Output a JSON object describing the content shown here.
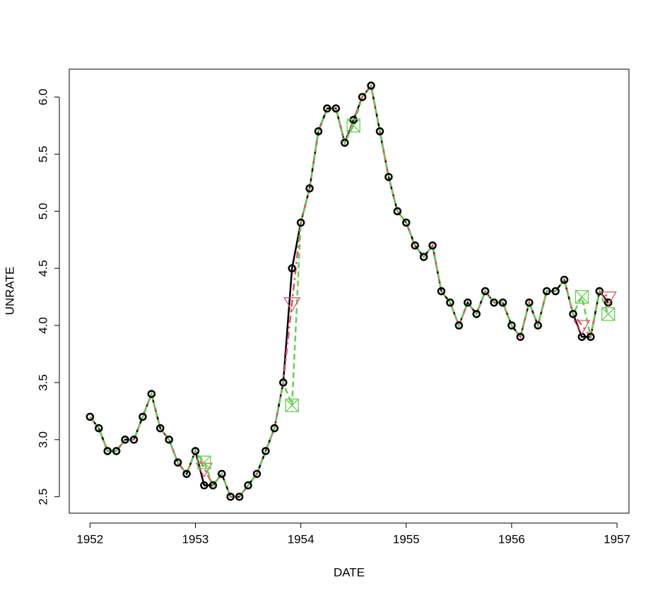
{
  "chart_data": {
    "type": "line",
    "x_label": "DATE",
    "y_label": "UNRATE",
    "x": [
      1952,
      1952.0833,
      1952.1667,
      1952.25,
      1952.3333,
      1952.4167,
      1952.5,
      1952.5833,
      1952.6667,
      1952.75,
      1952.8333,
      1952.9167,
      1953,
      1953.0833,
      1953.1667,
      1953.25,
      1953.3333,
      1953.4167,
      1953.5,
      1953.5833,
      1953.6667,
      1953.75,
      1953.8333,
      1953.9167,
      1954,
      1954.0833,
      1954.1667,
      1954.25,
      1954.3333,
      1954.4167,
      1954.5,
      1954.5833,
      1954.6667,
      1954.75,
      1954.8333,
      1954.9167,
      1955,
      1955.0833,
      1955.1667,
      1955.25,
      1955.3333,
      1955.4167,
      1955.5,
      1955.5833,
      1955.6667,
      1955.75,
      1955.8333,
      1955.9167,
      1956,
      1956.0833,
      1956.1667,
      1956.25,
      1956.3333,
      1956.4167,
      1956.5,
      1956.5833,
      1956.6667,
      1956.75,
      1956.8333,
      1956.9167
    ],
    "series": [
      {
        "color": "#000000",
        "values": [
          3.2,
          3.1,
          2.9,
          2.9,
          3.0,
          3.0,
          3.2,
          3.4,
          3.1,
          3.0,
          2.8,
          2.7,
          2.9,
          2.6,
          2.6,
          2.7,
          2.5,
          2.5,
          2.6,
          2.7,
          2.9,
          3.1,
          3.5,
          4.5,
          4.9,
          5.2,
          5.7,
          5.9,
          5.9,
          5.6,
          5.8,
          6.0,
          6.1,
          5.7,
          5.3,
          5.0,
          4.9,
          4.7,
          4.6,
          4.7,
          4.3,
          4.2,
          4.0,
          4.2,
          4.1,
          4.3,
          4.2,
          4.2,
          4.0,
          3.9,
          4.2,
          4.0,
          4.3,
          4.3,
          4.4,
          4.1,
          3.9,
          3.9,
          4.3,
          4.2
        ]
      },
      {
        "color": "#DF536B",
        "values": [
          3.2,
          3.1,
          2.9,
          2.9,
          3.0,
          3.0,
          3.2,
          3.4,
          3.1,
          3.0,
          2.8,
          2.7,
          2.9,
          2.75,
          2.6,
          2.7,
          2.5,
          2.5,
          2.6,
          2.7,
          2.9,
          3.1,
          3.5,
          4.2,
          4.9,
          5.2,
          5.7,
          5.9,
          5.9,
          5.6,
          5.8,
          6.0,
          6.1,
          5.7,
          5.3,
          5.0,
          4.9,
          4.7,
          4.6,
          4.7,
          4.3,
          4.2,
          4.0,
          4.2,
          4.1,
          4.3,
          4.2,
          4.2,
          4.0,
          3.9,
          4.2,
          4.0,
          4.3,
          4.3,
          4.4,
          4.1,
          4.0,
          3.9,
          4.3,
          4.25
        ]
      },
      {
        "color": "#61D04F",
        "values": [
          3.2,
          3.1,
          2.9,
          2.9,
          3.0,
          3.0,
          3.2,
          3.4,
          3.1,
          3.0,
          2.8,
          2.7,
          2.9,
          2.8,
          2.6,
          2.7,
          2.5,
          2.5,
          2.6,
          2.7,
          2.9,
          3.1,
          3.5,
          3.3,
          4.9,
          5.2,
          5.7,
          5.9,
          5.9,
          5.6,
          5.75,
          6.0,
          6.1,
          5.7,
          5.3,
          5.0,
          4.9,
          4.7,
          4.6,
          4.7,
          4.3,
          4.2,
          4.0,
          4.2,
          4.1,
          4.3,
          4.2,
          4.2,
          4.0,
          3.9,
          4.2,
          4.0,
          4.3,
          4.3,
          4.4,
          4.1,
          4.25,
          3.9,
          4.3,
          4.1
        ]
      }
    ],
    "xlim": [
      1951.8033,
      1957.1133
    ],
    "ylim": [
      2.356,
      6.244
    ],
    "xticks": [
      1952,
      1953,
      1954,
      1955,
      1956,
      1957
    ],
    "yticks": [
      2.5,
      {
        "value": 3,
        "label": "3.0"
      },
      3.5,
      {
        "value": 4,
        "label": "4.0"
      },
      4.5,
      {
        "value": 5,
        "label": "5.0"
      },
      5.5,
      {
        "value": 6,
        "label": "6.0"
      }
    ]
  }
}
